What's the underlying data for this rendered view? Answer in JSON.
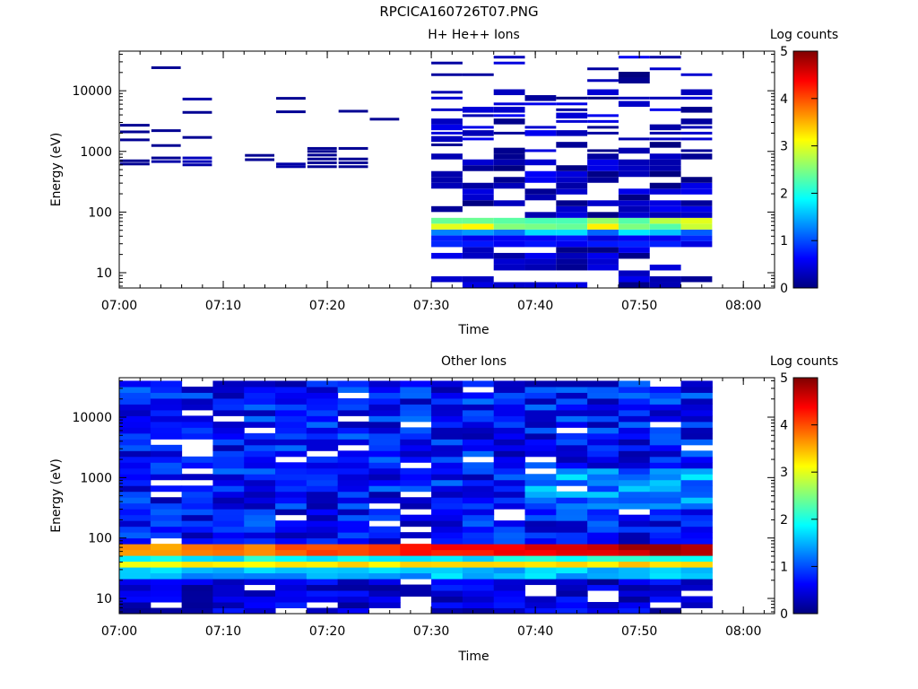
{
  "figure_title": "RPCICA160726T07.PNG",
  "colors": {
    "axis": "#000000",
    "background": "#ffffff",
    "colormap": [
      "#00007f",
      "#0000ff",
      "#007fff",
      "#00ffff",
      "#7fff7f",
      "#ffff00",
      "#ff7f00",
      "#ff0000",
      "#7f0000"
    ]
  },
  "chart_data": [
    {
      "type": "heatmap",
      "title": "H+ He++ Ions",
      "xlabel": "Time",
      "ylabel": "Energy (eV)",
      "x_ticks": [
        "07:00",
        "07:10",
        "07:20",
        "07:30",
        "07:40",
        "07:50",
        "08:00"
      ],
      "y_ticks": [
        "10",
        "100",
        "1000",
        "10000"
      ],
      "y_scale": "log",
      "ylim": [
        5.6,
        45000
      ],
      "xlim": [
        "07:00",
        "08:03"
      ],
      "colorbar": {
        "label": "Log counts",
        "range": [
          0,
          5
        ],
        "ticks": [
          "0",
          "1",
          "2",
          "3",
          "4",
          "5"
        ]
      },
      "time_bins": [
        "07:00",
        "07:03",
        "07:06",
        "07:09",
        "07:12",
        "07:15",
        "07:18",
        "07:21",
        "07:24",
        "07:27",
        "07:30",
        "07:33",
        "07:36",
        "07:39",
        "07:42",
        "07:45",
        "07:48",
        "07:51",
        "07:54"
      ],
      "rows": [
        {
          "t": 0,
          "e": 620,
          "v": 0.1
        },
        {
          "t": 0,
          "e": 700,
          "v": 0.1
        },
        {
          "t": 0,
          "e": 1550,
          "v": 0.1
        },
        {
          "t": 0,
          "e": 2100,
          "v": 0.1
        },
        {
          "t": 0,
          "e": 2700,
          "v": 0.1
        },
        {
          "t": 1,
          "e": 680,
          "v": 0.2
        },
        {
          "t": 1,
          "e": 780,
          "v": 0.1
        },
        {
          "t": 1,
          "e": 1250,
          "v": 0.1
        },
        {
          "t": 1,
          "e": 2200,
          "v": 0.1
        },
        {
          "t": 1,
          "e": 24000,
          "v": 0.1
        },
        {
          "t": 2,
          "e": 600,
          "v": 0.2
        },
        {
          "t": 2,
          "e": 680,
          "v": 0.3
        },
        {
          "t": 2,
          "e": 780,
          "v": 0.3
        },
        {
          "t": 2,
          "e": 1700,
          "v": 0.1
        },
        {
          "t": 2,
          "e": 4400,
          "v": 0.1
        },
        {
          "t": 2,
          "e": 7300,
          "v": 0.2
        },
        {
          "t": 4,
          "e": 730,
          "v": 0.1
        },
        {
          "t": 4,
          "e": 860,
          "v": 0.1
        },
        {
          "t": 5,
          "e": 560,
          "v": 0.2
        },
        {
          "t": 5,
          "e": 620,
          "v": 0.2
        },
        {
          "t": 5,
          "e": 4500,
          "v": 0.1
        },
        {
          "t": 5,
          "e": 7500,
          "v": 0.1
        },
        {
          "t": 6,
          "e": 560,
          "v": 0.1
        },
        {
          "t": 6,
          "e": 650,
          "v": 0.1
        },
        {
          "t": 6,
          "e": 750,
          "v": 0.1
        },
        {
          "t": 6,
          "e": 870,
          "v": 0.1
        },
        {
          "t": 6,
          "e": 1000,
          "v": 0.1
        },
        {
          "t": 6,
          "e": 1120,
          "v": 0.1
        },
        {
          "t": 7,
          "e": 560,
          "v": 0.1
        },
        {
          "t": 7,
          "e": 650,
          "v": 0.1
        },
        {
          "t": 7,
          "e": 750,
          "v": 0.1
        },
        {
          "t": 7,
          "e": 1120,
          "v": 0.1
        },
        {
          "t": 7,
          "e": 4600,
          "v": 0.1
        },
        {
          "t": 8,
          "e": 3400,
          "v": 0.1
        }
      ],
      "active_block": {
        "t_from": 10,
        "t_to": 18,
        "e_min": 5.6,
        "e_max": 40000
      }
    },
    {
      "type": "heatmap",
      "title": "Other Ions",
      "xlabel": "Time",
      "ylabel": "Energy (eV)",
      "x_ticks": [
        "07:00",
        "07:10",
        "07:20",
        "07:30",
        "07:40",
        "07:50",
        "08:00"
      ],
      "y_ticks": [
        "10",
        "100",
        "1000",
        "10000"
      ],
      "y_scale": "log",
      "ylim": [
        5.6,
        45000
      ],
      "xlim": [
        "07:00",
        "08:03"
      ],
      "colorbar": {
        "label": "Log counts",
        "range": [
          0,
          5
        ],
        "ticks": [
          "0",
          "1",
          "2",
          "3",
          "4",
          "5"
        ]
      },
      "band_peaks": [
        {
          "e_min": 54,
          "e_max": 72,
          "v_start": 3.4,
          "v_end": 4.7
        },
        {
          "e_min": 30,
          "e_max": 43,
          "v_start": 3.0,
          "v_end": 3.4
        }
      ],
      "active_block": {
        "t_from": 0,
        "t_to": 18,
        "e_min": 5.6,
        "e_max": 40000
      }
    }
  ]
}
